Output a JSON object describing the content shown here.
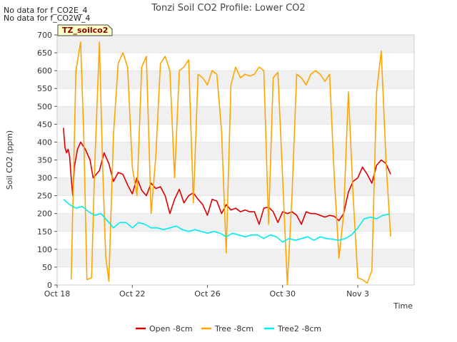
{
  "notes": [
    "No data for f_CO2E_4",
    "No data for f_CO2W_4"
  ],
  "site_badge": "TZ_soilco2",
  "chart_data": {
    "type": "line",
    "title": "Tonzi Soil CO2 Profile: Lower CO2",
    "xlabel": "Time",
    "ylabel": "Soil CO2 (ppm)",
    "xlim": [
      "2023-10-18",
      "2023-11-06"
    ],
    "ylim": [
      0,
      700
    ],
    "x_ticks": [
      {
        "date": "2023-10-18",
        "label": "Oct 18"
      },
      {
        "date": "2023-10-22",
        "label": "Oct 22"
      },
      {
        "date": "2023-10-26",
        "label": "Oct 26"
      },
      {
        "date": "2023-10-30",
        "label": "Oct 30"
      },
      {
        "date": "2023-11-03",
        "label": "Nov 3"
      }
    ],
    "y_ticks": [
      0,
      50,
      100,
      150,
      200,
      250,
      300,
      350,
      400,
      450,
      500,
      550,
      600,
      650,
      700
    ],
    "grid": "horizontal alternating bands",
    "legend_position": "bottom-center",
    "series": [
      {
        "name": "Open -8cm",
        "color": "#dd0000",
        "points": [
          [
            "2023-10-18 08:00",
            440
          ],
          [
            "2023-10-18 10:00",
            385
          ],
          [
            "2023-10-18 12:00",
            370
          ],
          [
            "2023-10-18 14:00",
            380
          ],
          [
            "2023-10-18 16:00",
            360
          ],
          [
            "2023-10-18 18:00",
            300
          ],
          [
            "2023-10-18 20:00",
            250
          ],
          [
            "2023-10-18 22:00",
            330
          ],
          [
            "2023-10-19 02:00",
            380
          ],
          [
            "2023-10-19 06:00",
            400
          ],
          [
            "2023-10-19 12:00",
            380
          ],
          [
            "2023-10-19 18:00",
            350
          ],
          [
            "2023-10-19 22:00",
            300
          ],
          [
            "2023-10-20 06:00",
            320
          ],
          [
            "2023-10-20 12:00",
            370
          ],
          [
            "2023-10-20 18:00",
            340
          ],
          [
            "2023-10-21 00:00",
            290
          ],
          [
            "2023-10-21 06:00",
            315
          ],
          [
            "2023-10-21 12:00",
            310
          ],
          [
            "2023-10-21 18:00",
            280
          ],
          [
            "2023-10-22 00:00",
            255
          ],
          [
            "2023-10-22 06:00",
            300
          ],
          [
            "2023-10-22 12:00",
            265
          ],
          [
            "2023-10-22 18:00",
            250
          ],
          [
            "2023-10-23 00:00",
            285
          ],
          [
            "2023-10-23 06:00",
            270
          ],
          [
            "2023-10-23 12:00",
            275
          ],
          [
            "2023-10-23 18:00",
            250
          ],
          [
            "2023-10-24 00:00",
            200
          ],
          [
            "2023-10-24 06:00",
            240
          ],
          [
            "2023-10-24 12:00",
            268
          ],
          [
            "2023-10-24 18:00",
            230
          ],
          [
            "2023-10-25 00:00",
            250
          ],
          [
            "2023-10-25 06:00",
            258
          ],
          [
            "2023-10-25 12:00",
            240
          ],
          [
            "2023-10-25 18:00",
            225
          ],
          [
            "2023-10-26 00:00",
            195
          ],
          [
            "2023-10-26 06:00",
            240
          ],
          [
            "2023-10-26 12:00",
            235
          ],
          [
            "2023-10-26 18:00",
            200
          ],
          [
            "2023-10-27 00:00",
            225
          ],
          [
            "2023-10-27 06:00",
            210
          ],
          [
            "2023-10-27 12:00",
            215
          ],
          [
            "2023-10-27 18:00",
            205
          ],
          [
            "2023-10-28 00:00",
            210
          ],
          [
            "2023-10-28 06:00",
            205
          ],
          [
            "2023-10-28 12:00",
            205
          ],
          [
            "2023-10-28 18:00",
            170
          ],
          [
            "2023-10-29 00:00",
            215
          ],
          [
            "2023-10-29 06:00",
            218
          ],
          [
            "2023-10-29 12:00",
            205
          ],
          [
            "2023-10-29 18:00",
            175
          ],
          [
            "2023-10-30 00:00",
            205
          ],
          [
            "2023-10-30 06:00",
            200
          ],
          [
            "2023-10-30 12:00",
            205
          ],
          [
            "2023-10-30 18:00",
            195
          ],
          [
            "2023-10-31 00:00",
            170
          ],
          [
            "2023-10-31 06:00",
            205
          ],
          [
            "2023-10-31 12:00",
            200
          ],
          [
            "2023-10-31 18:00",
            200
          ],
          [
            "2023-11-01 00:00",
            195
          ],
          [
            "2023-11-01 06:00",
            190
          ],
          [
            "2023-11-01 12:00",
            195
          ],
          [
            "2023-11-01 18:00",
            192
          ],
          [
            "2023-11-02 00:00",
            180
          ],
          [
            "2023-11-02 06:00",
            200
          ],
          [
            "2023-11-02 12:00",
            260
          ],
          [
            "2023-11-02 18:00",
            290
          ],
          [
            "2023-11-03 00:00",
            300
          ],
          [
            "2023-11-03 06:00",
            330
          ],
          [
            "2023-11-03 12:00",
            310
          ],
          [
            "2023-11-03 18:00",
            285
          ],
          [
            "2023-11-04 00:00",
            335
          ],
          [
            "2023-11-04 06:00",
            350
          ],
          [
            "2023-11-04 12:00",
            340
          ],
          [
            "2023-11-04 18:00",
            310
          ]
        ]
      },
      {
        "name": "Tree -8cm",
        "color": "#ffa500",
        "points": [
          [
            "2023-10-18 18:00",
            15
          ],
          [
            "2023-10-19 00:00",
            600
          ],
          [
            "2023-10-19 06:00",
            680
          ],
          [
            "2023-10-19 10:00",
            420
          ],
          [
            "2023-10-19 14:00",
            15
          ],
          [
            "2023-10-19 20:00",
            20
          ],
          [
            "2023-10-20 00:00",
            330
          ],
          [
            "2023-10-20 06:00",
            680
          ],
          [
            "2023-10-20 10:00",
            340
          ],
          [
            "2023-10-20 14:00",
            80
          ],
          [
            "2023-10-20 18:00",
            10
          ],
          [
            "2023-10-21 00:00",
            420
          ],
          [
            "2023-10-21 06:00",
            620
          ],
          [
            "2023-10-21 12:00",
            650
          ],
          [
            "2023-10-21 18:00",
            610
          ],
          [
            "2023-10-22 00:00",
            330
          ],
          [
            "2023-10-22 06:00",
            250
          ],
          [
            "2023-10-22 12:00",
            610
          ],
          [
            "2023-10-22 18:00",
            640
          ],
          [
            "2023-10-23 00:00",
            200
          ],
          [
            "2023-10-23 06:00",
            360
          ],
          [
            "2023-10-23 12:00",
            620
          ],
          [
            "2023-10-23 18:00",
            640
          ],
          [
            "2023-10-24 00:00",
            600
          ],
          [
            "2023-10-24 06:00",
            300
          ],
          [
            "2023-10-24 12:00",
            600
          ],
          [
            "2023-10-24 18:00",
            610
          ],
          [
            "2023-10-25 00:00",
            630
          ],
          [
            "2023-10-25 06:00",
            230
          ],
          [
            "2023-10-25 12:00",
            590
          ],
          [
            "2023-10-25 18:00",
            580
          ],
          [
            "2023-10-26 00:00",
            560
          ],
          [
            "2023-10-26 06:00",
            600
          ],
          [
            "2023-10-26 12:00",
            590
          ],
          [
            "2023-10-26 18:00",
            430
          ],
          [
            "2023-10-27 00:00",
            90
          ],
          [
            "2023-10-27 06:00",
            560
          ],
          [
            "2023-10-27 12:00",
            610
          ],
          [
            "2023-10-27 18:00",
            580
          ],
          [
            "2023-10-28 00:00",
            590
          ],
          [
            "2023-10-28 06:00",
            585
          ],
          [
            "2023-10-28 12:00",
            590
          ],
          [
            "2023-10-28 18:00",
            610
          ],
          [
            "2023-10-29 00:00",
            600
          ],
          [
            "2023-10-29 06:00",
            170
          ],
          [
            "2023-10-29 12:00",
            580
          ],
          [
            "2023-10-29 18:00",
            595
          ],
          [
            "2023-10-30 00:00",
            300
          ],
          [
            "2023-10-30 06:00",
            0
          ],
          [
            "2023-10-30 12:00",
            250
          ],
          [
            "2023-10-30 18:00",
            590
          ],
          [
            "2023-10-31 00:00",
            580
          ],
          [
            "2023-10-31 06:00",
            560
          ],
          [
            "2023-10-31 12:00",
            590
          ],
          [
            "2023-10-31 18:00",
            600
          ],
          [
            "2023-11-01 00:00",
            590
          ],
          [
            "2023-11-01 06:00",
            570
          ],
          [
            "2023-11-01 12:00",
            590
          ],
          [
            "2023-11-01 18:00",
            300
          ],
          [
            "2023-11-02 00:00",
            75
          ],
          [
            "2023-11-02 06:00",
            200
          ],
          [
            "2023-11-02 12:00",
            540
          ],
          [
            "2023-11-02 18:00",
            250
          ],
          [
            "2023-11-03 00:00",
            20
          ],
          [
            "2023-11-03 06:00",
            15
          ],
          [
            "2023-11-03 12:00",
            5
          ],
          [
            "2023-11-03 18:00",
            40
          ],
          [
            "2023-11-04 00:00",
            540
          ],
          [
            "2023-11-04 06:00",
            655
          ],
          [
            "2023-11-04 12:00",
            350
          ],
          [
            "2023-11-04 18:00",
            135
          ]
        ]
      },
      {
        "name": "Tree2 -8cm",
        "color": "#00eeee",
        "points": [
          [
            "2023-10-18 08:00",
            240
          ],
          [
            "2023-10-18 16:00",
            225
          ],
          [
            "2023-10-19 00:00",
            215
          ],
          [
            "2023-10-19 08:00",
            220
          ],
          [
            "2023-10-19 16:00",
            205
          ],
          [
            "2023-10-20 00:00",
            195
          ],
          [
            "2023-10-20 08:00",
            200
          ],
          [
            "2023-10-20 16:00",
            180
          ],
          [
            "2023-10-21 00:00",
            160
          ],
          [
            "2023-10-21 08:00",
            175
          ],
          [
            "2023-10-21 16:00",
            175
          ],
          [
            "2023-10-22 00:00",
            160
          ],
          [
            "2023-10-22 08:00",
            175
          ],
          [
            "2023-10-22 16:00",
            170
          ],
          [
            "2023-10-23 00:00",
            160
          ],
          [
            "2023-10-23 08:00",
            160
          ],
          [
            "2023-10-23 16:00",
            155
          ],
          [
            "2023-10-24 00:00",
            160
          ],
          [
            "2023-10-24 08:00",
            165
          ],
          [
            "2023-10-24 16:00",
            155
          ],
          [
            "2023-10-25 00:00",
            150
          ],
          [
            "2023-10-25 08:00",
            155
          ],
          [
            "2023-10-25 16:00",
            150
          ],
          [
            "2023-10-26 00:00",
            145
          ],
          [
            "2023-10-26 08:00",
            150
          ],
          [
            "2023-10-26 16:00",
            145
          ],
          [
            "2023-10-27 00:00",
            135
          ],
          [
            "2023-10-27 08:00",
            145
          ],
          [
            "2023-10-27 16:00",
            140
          ],
          [
            "2023-10-28 00:00",
            135
          ],
          [
            "2023-10-28 08:00",
            140
          ],
          [
            "2023-10-28 16:00",
            140
          ],
          [
            "2023-10-29 00:00",
            130
          ],
          [
            "2023-10-29 08:00",
            140
          ],
          [
            "2023-10-29 16:00",
            135
          ],
          [
            "2023-10-30 00:00",
            120
          ],
          [
            "2023-10-30 08:00",
            130
          ],
          [
            "2023-10-30 16:00",
            125
          ],
          [
            "2023-10-31 00:00",
            130
          ],
          [
            "2023-10-31 08:00",
            135
          ],
          [
            "2023-10-31 16:00",
            125
          ],
          [
            "2023-11-01 00:00",
            135
          ],
          [
            "2023-11-01 08:00",
            130
          ],
          [
            "2023-11-01 16:00",
            128
          ],
          [
            "2023-11-02 00:00",
            125
          ],
          [
            "2023-11-02 08:00",
            130
          ],
          [
            "2023-11-02 16:00",
            140
          ],
          [
            "2023-11-03 00:00",
            160
          ],
          [
            "2023-11-03 08:00",
            185
          ],
          [
            "2023-11-03 16:00",
            190
          ],
          [
            "2023-11-04 00:00",
            185
          ],
          [
            "2023-11-04 08:00",
            195
          ],
          [
            "2023-11-04 16:00",
            198
          ]
        ]
      }
    ]
  }
}
